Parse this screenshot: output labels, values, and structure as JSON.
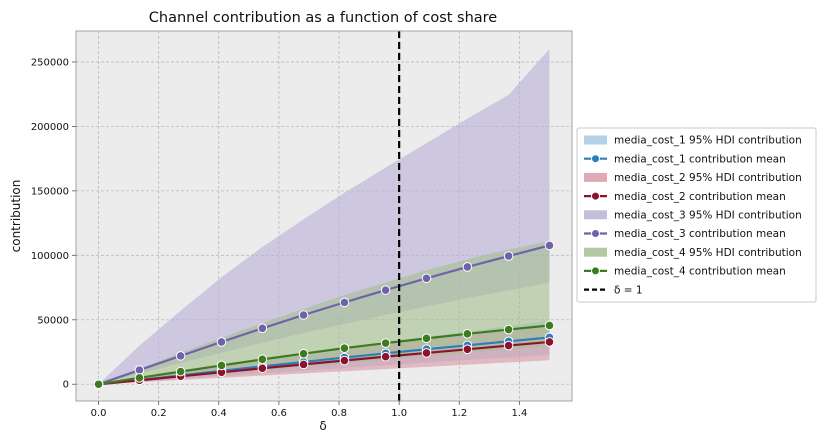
{
  "chart_data": {
    "type": "line",
    "title": "Channel contribution as a function of cost share",
    "xlabel": "δ",
    "ylabel": "contribution",
    "xlim": [
      -0.075,
      1.575
    ],
    "ylim": [
      -13000,
      274000
    ],
    "xticks": [
      0.0,
      0.2,
      0.4,
      0.6,
      0.8,
      1.0,
      1.2,
      1.4
    ],
    "xtick_labels": [
      "0.0",
      "0.2",
      "0.4",
      "0.6",
      "0.8",
      "1.0",
      "1.2",
      "1.4"
    ],
    "yticks": [
      0,
      50000,
      100000,
      150000,
      200000,
      250000
    ],
    "ytick_labels": [
      "0",
      "50000",
      "100000",
      "150000",
      "200000",
      "250000"
    ],
    "grid": true,
    "legend_position": "right-outside",
    "vline": {
      "x": 1.0,
      "label": "δ = 1",
      "color": "#000000",
      "style": "dashed"
    },
    "background": "#ececec",
    "marker_x": [
      0.0,
      0.136,
      0.273,
      0.409,
      0.545,
      0.682,
      0.818,
      0.955,
      1.091,
      1.227,
      1.364,
      1.5
    ],
    "series": [
      {
        "name": "media_cost_1",
        "line_color": "#2a7fb8",
        "band_color": "#a7c8e3",
        "band_label": "media_cost_1 95% HDI contribution",
        "line_label": "media_cost_1 contribution mean",
        "mean": [
          0,
          3200,
          6800,
          10400,
          13900,
          17300,
          20700,
          24000,
          27200,
          30200,
          33300,
          36300
        ],
        "lower": [
          0,
          2000,
          4100,
          6300,
          8400,
          10500,
          12600,
          14700,
          16800,
          18800,
          20800,
          22800
        ],
        "upper": [
          0,
          4700,
          9400,
          14100,
          18700,
          23200,
          27700,
          32200,
          36600,
          40900,
          45200,
          49300
        ]
      },
      {
        "name": "media_cost_2",
        "line_color": "#8d1230",
        "band_color": "#d89aa6",
        "band_label": "media_cost_2 95% HDI contribution",
        "line_label": "media_cost_2 contribution mean",
        "mean": [
          0,
          3000,
          6200,
          9300,
          12400,
          15400,
          18400,
          21400,
          24300,
          27100,
          30000,
          32800
        ],
        "lower": [
          0,
          1600,
          3300,
          5000,
          6700,
          8400,
          10100,
          11800,
          13500,
          15200,
          16900,
          18600
        ],
        "upper": [
          0,
          4600,
          9100,
          13600,
          18000,
          22300,
          26600,
          30800,
          34900,
          39000,
          43000,
          47000
        ]
      },
      {
        "name": "media_cost_3",
        "line_color": "#7062a8",
        "band_color": "#bab2d6",
        "band_label": "media_cost_3 95% HDI contribution",
        "line_label": "media_cost_3 contribution mean",
        "mean": [
          0,
          11000,
          22000,
          32800,
          43400,
          53700,
          63500,
          73000,
          82200,
          91000,
          99400,
          107700
        ],
        "lower": [
          0,
          8200,
          16500,
          24400,
          32200,
          39700,
          46800,
          53700,
          60400,
          66700,
          72900,
          78800
        ],
        "upper": [
          0,
          30000,
          57000,
          83000,
          106500,
          128000,
          148500,
          168000,
          187000,
          206000,
          224500,
          260000
        ]
      },
      {
        "name": "media_cost_4",
        "line_color": "#3e7a1e",
        "band_color": "#a4c092",
        "band_label": "media_cost_4 95% HDI contribution",
        "line_label": "media_cost_4 contribution mean",
        "mean": [
          0,
          5000,
          9800,
          14600,
          19300,
          23700,
          28000,
          31900,
          35600,
          39100,
          42400,
          45600
        ],
        "lower": [
          0,
          2500,
          5200,
          8000,
          10900,
          13700,
          16400,
          19100,
          21800,
          24400,
          27000,
          29500
        ],
        "upper": [
          0,
          12000,
          24500,
          36000,
          47500,
          58500,
          69000,
          79000,
          88500,
          97000,
          104500,
          111000
        ]
      }
    ]
  }
}
